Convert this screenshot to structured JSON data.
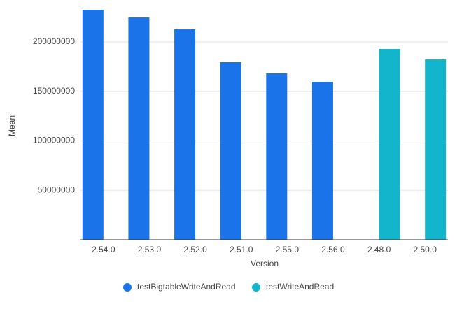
{
  "chart_data": {
    "type": "bar",
    "x_label": "Version",
    "y_label": "Mean",
    "categories": [
      "2.54.0",
      "2.53.0",
      "2.52.0",
      "2.51.0",
      "2.55.0",
      "2.56.0",
      "2.48.0",
      "2.50.0"
    ],
    "series": [
      {
        "name": "testBigtableWriteAndRead",
        "color": "#1a73e8",
        "values": [
          232500000,
          224700000,
          212700000,
          179500000,
          168200000,
          159700000,
          null,
          null
        ]
      },
      {
        "name": "testWriteAndRead",
        "color": "#12b5cb",
        "values": [
          null,
          null,
          null,
          null,
          null,
          null,
          192900000,
          182300000
        ]
      }
    ],
    "ylim": [
      0,
      240000000
    ],
    "yticks": [
      50000000,
      100000000,
      150000000,
      200000000
    ],
    "grid": true,
    "legend": "bottom"
  }
}
